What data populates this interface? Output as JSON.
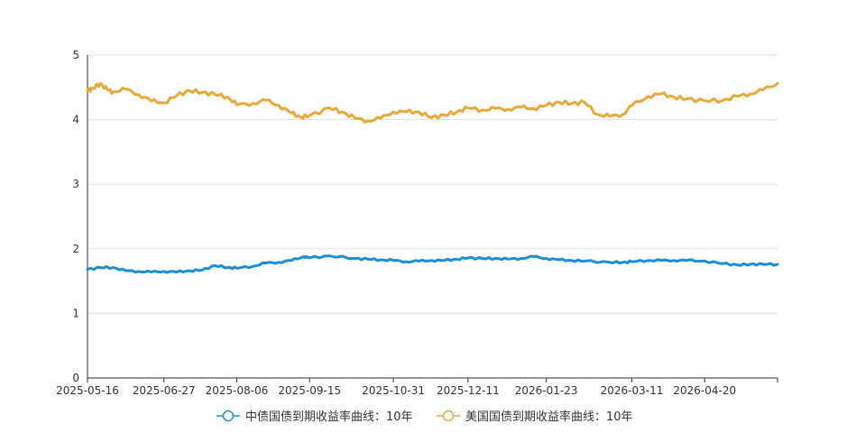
{
  "chart_data": {
    "type": "line",
    "title": "",
    "xlabel": "",
    "ylabel": "",
    "ylim": [
      0,
      5
    ],
    "yticks": [
      "0",
      "1",
      "2",
      "3",
      "4",
      "5"
    ],
    "xlim": [
      "2025-05-16",
      "2026-05-30"
    ],
    "xticks": [
      "2025-05-16",
      "2025-06-27",
      "2025-08-06",
      "2025-09-15",
      "2025-10-31",
      "2025-12-11",
      "2026-01-23",
      "2026-03-11",
      "2026-04-20"
    ],
    "grid": "horizontal",
    "legend_position": "bottom",
    "series": [
      {
        "name": "中债国债到期收益率曲线：10年",
        "color": "#1a8fd6",
        "x": [
          "2025-05-16",
          "2025-05-23",
          "2025-05-30",
          "2025-06-06",
          "2025-06-13",
          "2025-06-20",
          "2025-06-27",
          "2025-07-04",
          "2025-07-11",
          "2025-07-18",
          "2025-07-25",
          "2025-08-01",
          "2025-08-06",
          "2025-08-15",
          "2025-08-22",
          "2025-08-29",
          "2025-09-05",
          "2025-09-12",
          "2025-09-15",
          "2025-09-26",
          "2025-10-10",
          "2025-10-17",
          "2025-10-24",
          "2025-10-31",
          "2025-11-07",
          "2025-11-14",
          "2025-11-21",
          "2025-11-28",
          "2025-12-05",
          "2025-12-11",
          "2025-12-19",
          "2025-12-26",
          "2026-01-02",
          "2026-01-09",
          "2026-01-16",
          "2026-01-23",
          "2026-01-30",
          "2026-02-06",
          "2026-02-13",
          "2026-02-27",
          "2026-03-06",
          "2026-03-11",
          "2026-03-20",
          "2026-03-27",
          "2026-04-03",
          "2026-04-10",
          "2026-04-20",
          "2026-04-30",
          "2026-05-08",
          "2026-05-15",
          "2026-05-22",
          "2026-05-30"
        ],
        "y": [
          1.68,
          1.71,
          1.71,
          1.66,
          1.65,
          1.64,
          1.65,
          1.64,
          1.66,
          1.67,
          1.74,
          1.71,
          1.7,
          1.73,
          1.78,
          1.79,
          1.82,
          1.88,
          1.86,
          1.89,
          1.85,
          1.84,
          1.83,
          1.82,
          1.8,
          1.81,
          1.82,
          1.82,
          1.84,
          1.86,
          1.85,
          1.85,
          1.84,
          1.85,
          1.88,
          1.85,
          1.83,
          1.82,
          1.81,
          1.79,
          1.79,
          1.8,
          1.82,
          1.82,
          1.82,
          1.82,
          1.81,
          1.77,
          1.75,
          1.76,
          1.76,
          1.76
        ]
      },
      {
        "name": "美国国债到期收益率曲线：10年",
        "color": "#e8a93a",
        "x": [
          "2025-05-16",
          "2025-05-19",
          "2025-05-23",
          "2025-05-27",
          "2025-05-30",
          "2025-06-06",
          "2025-06-13",
          "2025-06-20",
          "2025-06-27",
          "2025-07-04",
          "2025-07-11",
          "2025-07-18",
          "2025-07-25",
          "2025-08-01",
          "2025-08-06",
          "2025-08-15",
          "2025-08-22",
          "2025-08-29",
          "2025-09-05",
          "2025-09-10",
          "2025-09-15",
          "2025-09-26",
          "2025-10-03",
          "2025-10-10",
          "2025-10-17",
          "2025-10-24",
          "2025-10-31",
          "2025-11-07",
          "2025-11-14",
          "2025-11-21",
          "2025-11-28",
          "2025-12-05",
          "2025-12-11",
          "2025-12-19",
          "2025-12-26",
          "2026-01-02",
          "2026-01-09",
          "2026-01-16",
          "2026-01-23",
          "2026-01-30",
          "2026-02-06",
          "2026-02-13",
          "2026-02-20",
          "2026-02-27",
          "2026-03-06",
          "2026-03-11",
          "2026-03-20",
          "2026-03-27",
          "2026-04-03",
          "2026-04-10",
          "2026-04-20",
          "2026-04-30",
          "2026-05-08",
          "2026-05-15",
          "2026-05-22",
          "2026-05-30"
        ],
        "y": [
          4.45,
          4.48,
          4.56,
          4.46,
          4.43,
          4.47,
          4.39,
          4.29,
          4.26,
          4.37,
          4.45,
          4.42,
          4.39,
          4.35,
          4.23,
          4.25,
          4.3,
          4.22,
          4.1,
          4.04,
          4.06,
          4.18,
          4.12,
          4.02,
          3.98,
          4.02,
          4.12,
          4.12,
          4.12,
          4.03,
          4.07,
          4.12,
          4.18,
          4.15,
          4.17,
          4.16,
          4.19,
          4.17,
          4.22,
          4.27,
          4.25,
          4.27,
          4.08,
          4.05,
          4.08,
          4.22,
          4.36,
          4.4,
          4.35,
          4.32,
          4.29,
          4.3,
          4.36,
          4.4,
          4.46,
          4.56
        ]
      }
    ]
  }
}
